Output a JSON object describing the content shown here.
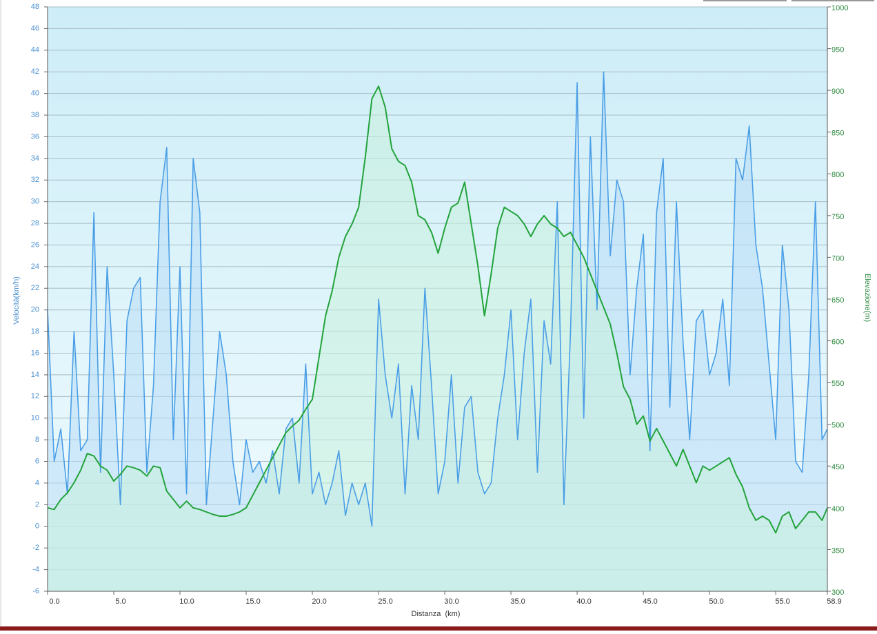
{
  "chart_data": {
    "type": "line",
    "xlabel": "Distanza  (km)",
    "ylabel": "Velocità(km/h)",
    "y2label": "Elevazione(m)",
    "x": [
      0,
      0.5,
      1,
      1.5,
      2,
      2.5,
      3,
      3.5,
      4,
      4.5,
      5,
      5.5,
      6,
      6.5,
      7,
      7.5,
      8,
      8.5,
      9,
      9.5,
      10,
      10.5,
      11,
      11.5,
      12,
      12.5,
      13,
      13.5,
      14,
      14.5,
      15,
      15.5,
      16,
      16.5,
      17,
      17.5,
      18,
      18.5,
      19,
      19.5,
      20,
      20.5,
      21,
      21.5,
      22,
      22.5,
      23,
      23.5,
      24,
      24.5,
      25,
      25.5,
      26,
      26.5,
      27,
      27.5,
      28,
      28.5,
      29,
      29.5,
      30,
      30.5,
      31,
      31.5,
      32,
      32.5,
      33,
      33.5,
      34,
      34.5,
      35,
      35.5,
      36,
      36.5,
      37,
      37.5,
      38,
      38.5,
      39,
      39.5,
      40,
      40.5,
      41,
      41.5,
      42,
      42.5,
      43,
      43.5,
      44,
      44.5,
      45,
      45.5,
      46,
      46.5,
      47,
      47.5,
      48,
      48.5,
      49,
      49.5,
      50,
      50.5,
      51,
      51.5,
      52,
      52.5,
      53,
      53.5,
      54,
      54.5,
      55,
      55.5,
      56,
      56.5,
      57,
      57.5,
      58,
      58.5,
      58.9
    ],
    "series": [
      {
        "color": "#4a9ee6",
        "fill": "#b8dcf5",
        "values": [
          20,
          6,
          9,
          3,
          18,
          7,
          8,
          29,
          5,
          24,
          14,
          2,
          19,
          22,
          23,
          5,
          13,
          30,
          35,
          8,
          24,
          3,
          34,
          29,
          2,
          10,
          18,
          14,
          6,
          2,
          8,
          5,
          6,
          4,
          7,
          3,
          9,
          10,
          4,
          15,
          3,
          5,
          2,
          4,
          7,
          1,
          4,
          2,
          4,
          0,
          21,
          14,
          10,
          15,
          3,
          13,
          8,
          22,
          13,
          3,
          6,
          14,
          4,
          11,
          12,
          5,
          3,
          4,
          10,
          14,
          20,
          8,
          16,
          21,
          5,
          19,
          15,
          30,
          2,
          18,
          41,
          10,
          36,
          20,
          42,
          25,
          32,
          30,
          14,
          22,
          27,
          7,
          29,
          34,
          11,
          30,
          17,
          8,
          19,
          20,
          14,
          16,
          21,
          13,
          34,
          32,
          37,
          26,
          22,
          15,
          8,
          26,
          20,
          6,
          5,
          14,
          30,
          8,
          9
        ]
      },
      {
        "color": "#22a33a",
        "fill": "#c9f0dc",
        "axis": "y2",
        "values": [
          400,
          398,
          410,
          418,
          430,
          445,
          465,
          462,
          450,
          445,
          432,
          440,
          450,
          448,
          445,
          438,
          450,
          448,
          420,
          410,
          400,
          408,
          400,
          398,
          395,
          392,
          390,
          390,
          392,
          395,
          400,
          415,
          430,
          445,
          460,
          475,
          490,
          498,
          505,
          518,
          530,
          580,
          630,
          660,
          700,
          725,
          740,
          760,
          820,
          890,
          905,
          880,
          830,
          815,
          810,
          790,
          750,
          745,
          730,
          705,
          735,
          760,
          765,
          790,
          740,
          690,
          630,
          680,
          735,
          760,
          755,
          750,
          740,
          725,
          740,
          750,
          740,
          735,
          725,
          730,
          715,
          700,
          680,
          660,
          640,
          620,
          585,
          545,
          530,
          500,
          510,
          480,
          495,
          480,
          465,
          450,
          470,
          450,
          430,
          450,
          445,
          450,
          455,
          460,
          440,
          425,
          400,
          385,
          390,
          385,
          370,
          390,
          395,
          375,
          385,
          395,
          395,
          385,
          400
        ]
      }
    ],
    "xlim": [
      0,
      58.9
    ],
    "xticks": [
      {
        "value": 0,
        "label": "0.0"
      },
      {
        "value": 5,
        "label": "5.0"
      },
      {
        "value": 10,
        "label": "10.0"
      },
      {
        "value": 15,
        "label": "15.0"
      },
      {
        "value": 20,
        "label": "20.0"
      },
      {
        "value": 25,
        "label": "25.0"
      },
      {
        "value": 30,
        "label": "30.0"
      },
      {
        "value": 35,
        "label": "35.0"
      },
      {
        "value": 40,
        "label": "40.0"
      },
      {
        "value": 45,
        "label": "45.0"
      },
      {
        "value": 50,
        "label": "50.0"
      },
      {
        "value": 55,
        "label": "55.0"
      },
      58.9
    ],
    "ylim": [
      -6,
      48
    ],
    "yticks": [
      -6,
      -4,
      -2,
      0,
      2,
      4,
      6,
      8,
      10,
      12,
      14,
      16,
      18,
      20,
      22,
      24,
      26,
      28,
      30,
      32,
      34,
      36,
      38,
      40,
      42,
      44,
      46,
      48
    ],
    "y2lim": [
      300,
      1000
    ],
    "y2ticks": [
      300,
      350,
      400,
      450,
      500,
      550,
      600,
      650,
      700,
      750,
      800,
      850,
      900,
      950,
      1000
    ],
    "grid": true
  }
}
